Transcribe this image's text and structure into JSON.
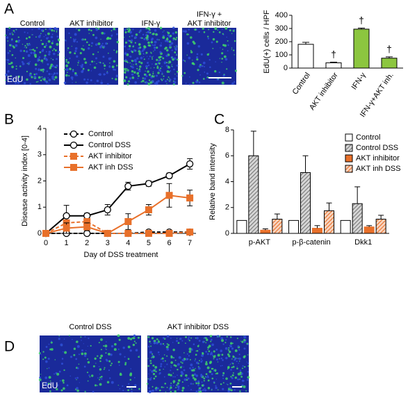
{
  "figure": {
    "panel_labels": [
      "A",
      "B",
      "C",
      "D"
    ],
    "panel_a_images": [
      [
        "Control"
      ],
      [
        "AKT inhibitor"
      ],
      [
        "IFN-γ"
      ],
      [
        "IFN-γ +",
        "AKT inhibitor"
      ]
    ],
    "stain_label": "EdU",
    "panel_d_images": [
      "Control DSS",
      "AKT inhibitor DSS"
    ]
  },
  "chart_data": [
    {
      "type": "bar",
      "ylabel": "EdU(+) cells / HPF",
      "categories": [
        "Control",
        "AKT inhibitor",
        "IFN-γ",
        "IFN-γ+AKT inh."
      ],
      "values": [
        180,
        40,
        295,
        75
      ],
      "errors": [
        15,
        5,
        8,
        10
      ],
      "colors": [
        "#ffffff",
        "#ffffff",
        "#8cc63f",
        "#8cc63f"
      ],
      "annotations": [
        null,
        "†",
        "†",
        "†"
      ],
      "ylim": [
        0,
        400
      ],
      "yticks": [
        0,
        100,
        200,
        300,
        400
      ]
    },
    {
      "type": "line",
      "xlabel": "Day of DSS treatment",
      "ylabel": "Disease activity index [0-4]",
      "x": [
        0,
        1,
        2,
        3,
        4,
        5,
        6,
        7
      ],
      "xlim": [
        0,
        7.3
      ],
      "xticks": [
        0,
        1,
        2,
        3,
        4,
        5,
        6,
        7
      ],
      "ylim": [
        0,
        4
      ],
      "yticks": [
        0,
        1,
        2,
        3,
        4
      ],
      "series": [
        {
          "name": "Control",
          "color": "#000000",
          "dash": true,
          "marker": "circle",
          "values": [
            0,
            0,
            0,
            0,
            0,
            0.05,
            0.05,
            0.05
          ],
          "errors": [
            0,
            0,
            0,
            0,
            0,
            0.02,
            0.03,
            0.02
          ]
        },
        {
          "name": "Control DSS",
          "color": "#000000",
          "dash": false,
          "marker": "circle",
          "values": [
            0,
            0.67,
            0.67,
            0.9,
            1.8,
            1.9,
            2.2,
            2.65
          ],
          "errors": [
            0,
            0.4,
            0.1,
            0.2,
            0.15,
            0.1,
            0.1,
            0.2
          ]
        },
        {
          "name": "AKT inhibitor",
          "color": "#e8702a",
          "dash": true,
          "marker": "square",
          "values": [
            0,
            0.4,
            0.45,
            0,
            0,
            0,
            0,
            0.05
          ],
          "errors": [
            0,
            0.05,
            0.1,
            0,
            0,
            0,
            0,
            0.03
          ]
        },
        {
          "name": "AKT inh DSS",
          "color": "#e8702a",
          "dash": false,
          "marker": "square",
          "values": [
            0,
            0.2,
            0.25,
            0,
            0.45,
            0.9,
            1.45,
            1.35
          ],
          "errors": [
            0,
            0.2,
            0.15,
            0,
            0.3,
            0.2,
            0.45,
            0.3
          ]
        }
      ]
    },
    {
      "type": "grouped_bar",
      "ylabel": "Relative band intensity",
      "categories": [
        "p-AKT",
        "p-β-catenin",
        "Dkk1"
      ],
      "ylim": [
        0,
        8
      ],
      "yticks": [
        0,
        2,
        4,
        6,
        8
      ],
      "series": [
        {
          "name": "Control",
          "color": "#ffffff",
          "hatch": false,
          "values": [
            1,
            1,
            1
          ],
          "errors": [
            0,
            0,
            0
          ]
        },
        {
          "name": "Control DSS",
          "color": "#777777",
          "hatch": true,
          "values": [
            6,
            4.7,
            2.3
          ],
          "errors": [
            1.9,
            1.3,
            1.3
          ]
        },
        {
          "name": "AKT inhibitor",
          "color": "#e8702a",
          "hatch": false,
          "values": [
            0.25,
            0.4,
            0.5
          ],
          "errors": [
            0.1,
            0.2,
            0.1
          ]
        },
        {
          "name": "AKT inh DSS",
          "color": "#e8702a",
          "hatch": true,
          "values": [
            1.1,
            1.75,
            1.1
          ],
          "errors": [
            0.4,
            0.6,
            0.3
          ]
        }
      ]
    }
  ]
}
